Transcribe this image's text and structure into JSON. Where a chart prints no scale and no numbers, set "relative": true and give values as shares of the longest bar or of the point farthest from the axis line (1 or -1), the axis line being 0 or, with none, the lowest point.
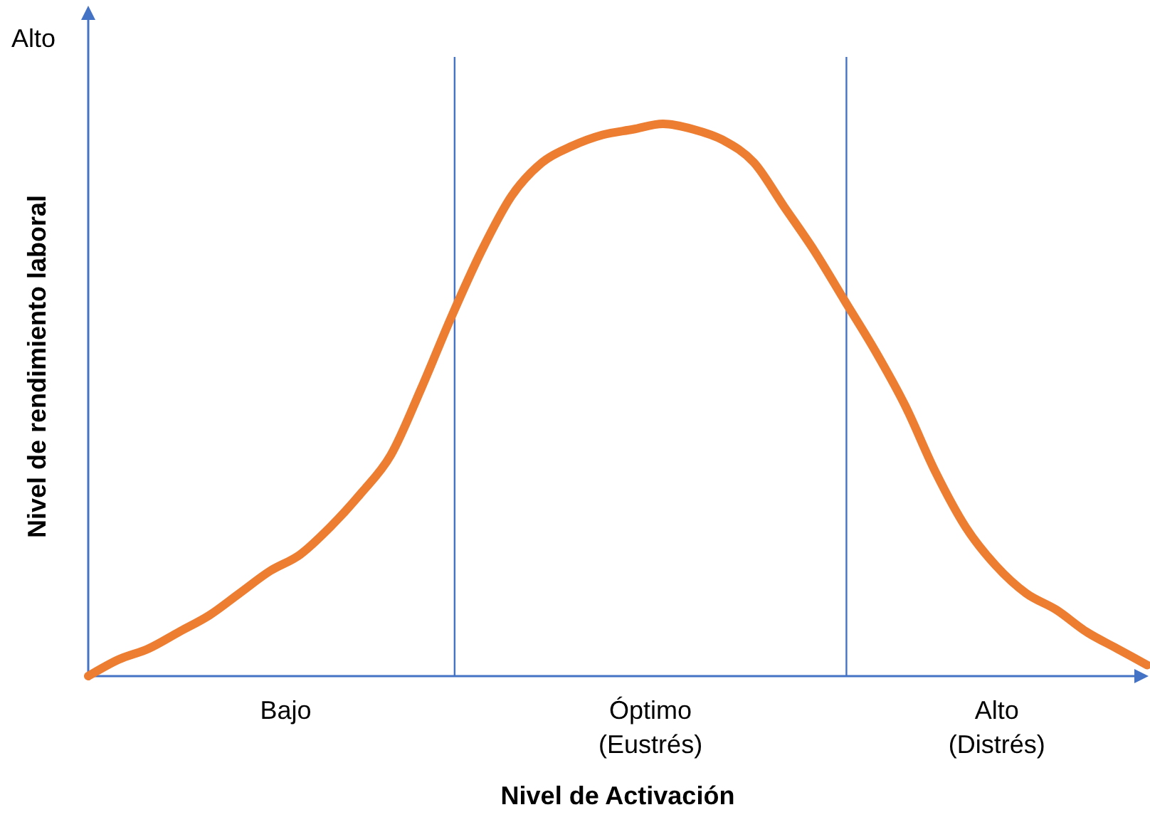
{
  "chart_data": {
    "type": "line",
    "relative": true,
    "xlabel": "Nivel de Activación",
    "ylabel": "Nivel de rendimiento laboral",
    "categories": [
      null,
      null,
      null,
      null,
      null,
      null,
      null,
      null,
      null,
      null,
      null,
      null,
      null,
      null,
      null,
      null,
      null,
      null,
      null,
      null,
      null,
      null,
      null,
      null,
      null,
      null,
      null,
      null,
      null,
      null,
      null,
      null,
      null,
      null,
      null,
      null
    ],
    "series": [
      {
        "color": "#ed7d31",
        "values": [
          0,
          0.03,
          0.05,
          0.08,
          0.11,
          0.15,
          0.19,
          0.22,
          0.27,
          0.33,
          0.4,
          0.52,
          0.65,
          0.77,
          0.87,
          0.93,
          0.96,
          0.98,
          0.99,
          1,
          0.99,
          0.97,
          0.93,
          0.85,
          0.77,
          0.68,
          0.59,
          0.49,
          0.37,
          0.27,
          0.2,
          0.15,
          0.12,
          0.08,
          0.05,
          0.02
        ]
      }
    ],
    "annotations": [
      "Alto",
      "Bajo",
      "Óptimo\n(Eustrés)",
      "Alto\n(Distrés)"
    ],
    "line_style": "solid"
  }
}
